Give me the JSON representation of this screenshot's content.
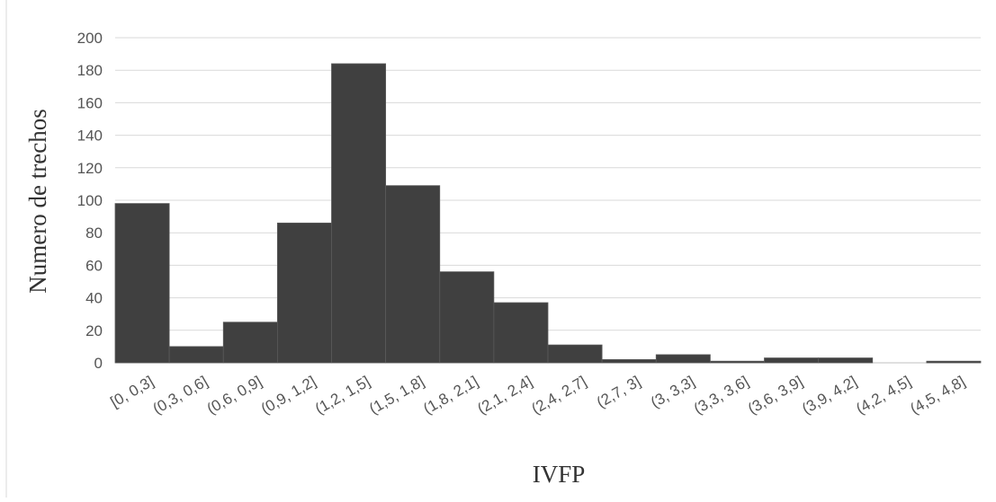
{
  "chart_data": {
    "type": "bar",
    "title": "",
    "xlabel": "IVFP",
    "ylabel": "Numero de trechos",
    "ylim": [
      0,
      200
    ],
    "yticks": [
      0,
      20,
      40,
      60,
      80,
      100,
      120,
      140,
      160,
      180,
      200
    ],
    "categories": [
      "[0, 0,3]",
      "(0,3, 0,6]",
      "(0,6, 0,9]",
      "(0,9, 1,2]",
      "(1,2, 1,5]",
      "(1,5, 1,8]",
      "(1,8, 2,1]",
      "(2,1, 2,4]",
      "(2,4, 2,7]",
      "(2,7, 3]",
      "(3, 3,3]",
      "(3,3, 3,6]",
      "(3,6, 3,9]",
      "(3,9, 4,2]",
      "(4,2, 4,5]",
      "(4,5, 4,8]"
    ],
    "values": [
      98,
      10,
      25,
      86,
      184,
      109,
      56,
      37,
      11,
      2,
      5,
      1,
      3,
      3,
      0,
      1
    ],
    "bar_color": "#404040",
    "gridlines": true,
    "legend": "none"
  }
}
